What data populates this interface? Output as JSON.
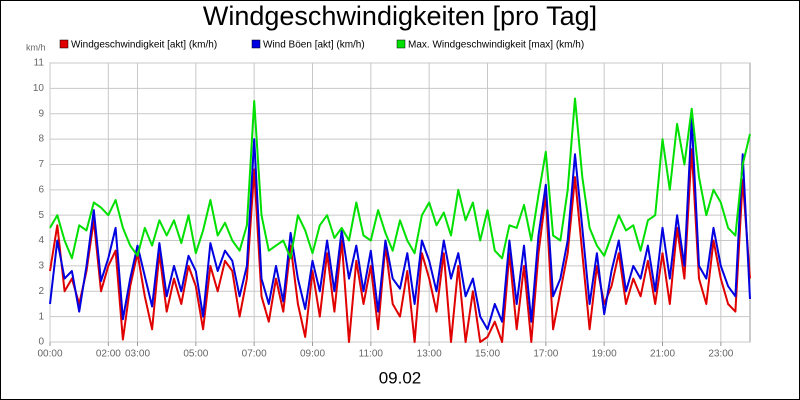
{
  "chart_data": {
    "type": "line",
    "title": "Windgeschwindigkeiten [pro Tag]",
    "y_unit": "km/h",
    "x_label": "09.02",
    "xlim": [
      0,
      24
    ],
    "xticks": [
      {
        "value": 0,
        "label": "00:00"
      },
      {
        "value": 2,
        "label": "02:00"
      },
      {
        "value": 3,
        "label": "03:00"
      },
      {
        "value": 5,
        "label": "05:00"
      },
      {
        "value": 7,
        "label": "07:00"
      },
      {
        "value": 9,
        "label": "09:00"
      },
      {
        "value": 11,
        "label": "11:00"
      },
      {
        "value": 13,
        "label": "13:00"
      },
      {
        "value": 15,
        "label": "15:00"
      },
      {
        "value": 17,
        "label": "17:00"
      },
      {
        "value": 19,
        "label": "19:00"
      },
      {
        "value": 21,
        "label": "21:00"
      },
      {
        "value": 23,
        "label": "23:00"
      }
    ],
    "ylim": [
      0,
      11
    ],
    "yticks": [
      0,
      1,
      2,
      3,
      4,
      5,
      6,
      7,
      8,
      9,
      10,
      11
    ],
    "grid": true,
    "x": [
      0,
      0.25,
      0.5,
      0.75,
      1,
      1.25,
      1.5,
      1.75,
      2,
      2.25,
      2.5,
      2.75,
      3,
      3.25,
      3.5,
      3.75,
      4,
      4.25,
      4.5,
      4.75,
      5,
      5.25,
      5.5,
      5.75,
      6,
      6.25,
      6.5,
      6.75,
      7,
      7.25,
      7.5,
      7.75,
      8,
      8.25,
      8.5,
      8.75,
      9,
      9.25,
      9.5,
      9.75,
      10,
      10.25,
      10.5,
      10.75,
      11,
      11.25,
      11.5,
      11.75,
      12,
      12.25,
      12.5,
      12.75,
      13,
      13.25,
      13.5,
      13.75,
      14,
      14.25,
      14.5,
      14.75,
      15,
      15.25,
      15.5,
      15.75,
      16,
      16.25,
      16.5,
      16.75,
      17,
      17.25,
      17.5,
      17.75,
      18,
      18.25,
      18.5,
      18.75,
      19,
      19.25,
      19.5,
      19.75,
      20,
      20.25,
      20.5,
      20.75,
      21,
      21.25,
      21.5,
      21.75,
      22,
      22.25,
      22.5,
      22.75,
      23,
      23.25,
      23.5,
      23.75,
      24
    ],
    "series": [
      {
        "name": "Windgeschwindigkeit [akt] (km/h)",
        "color": "#e00000",
        "values": [
          2.8,
          4.6,
          2.0,
          2.5,
          1.5,
          2.8,
          4.8,
          2.0,
          3.0,
          3.6,
          0.1,
          2.2,
          3.5,
          1.8,
          0.5,
          3.5,
          1.2,
          2.5,
          1.5,
          3.0,
          2.2,
          0.5,
          3.0,
          2.0,
          3.2,
          2.8,
          1.0,
          2.5,
          6.8,
          1.8,
          0.8,
          2.5,
          1.2,
          3.8,
          1.5,
          0.2,
          2.8,
          1.0,
          3.5,
          1.2,
          4.0,
          0.0,
          3.2,
          1.5,
          3.0,
          0.5,
          3.8,
          1.5,
          1.0,
          2.8,
          0.0,
          3.5,
          2.5,
          1.2,
          3.5,
          0.0,
          3.0,
          0.0,
          2.0,
          0.0,
          0.2,
          0.8,
          0.0,
          3.5,
          0.5,
          3.0,
          0.0,
          3.5,
          5.8,
          0.5,
          2.0,
          3.5,
          6.5,
          3.5,
          0.5,
          3.0,
          1.5,
          2.2,
          3.5,
          1.5,
          2.5,
          1.8,
          3.2,
          1.5,
          3.5,
          1.5,
          4.5,
          2.5,
          7.6,
          2.5,
          1.5,
          4.0,
          2.5,
          1.5,
          1.2,
          6.4,
          2.5
        ]
      },
      {
        "name": "Wind Böen [akt] (km/h)",
        "color": "#0000e0",
        "values": [
          1.5,
          4.0,
          2.5,
          2.8,
          1.2,
          3.0,
          5.2,
          2.4,
          3.3,
          4.5,
          0.9,
          2.5,
          3.8,
          2.6,
          1.4,
          3.9,
          1.8,
          3.0,
          2.0,
          3.4,
          2.8,
          1.0,
          3.9,
          2.8,
          3.6,
          3.2,
          1.8,
          3.0,
          8.0,
          2.5,
          1.5,
          3.0,
          1.6,
          4.3,
          2.5,
          1.3,
          3.2,
          2.0,
          4.0,
          2.0,
          4.4,
          2.5,
          3.8,
          2.0,
          3.6,
          1.2,
          4.0,
          2.5,
          2.1,
          3.5,
          1.5,
          4.0,
          3.2,
          2.0,
          4.0,
          2.5,
          3.5,
          1.8,
          2.5,
          1.0,
          0.5,
          1.5,
          0.8,
          4.0,
          1.5,
          3.8,
          0.8,
          4.2,
          6.2,
          1.8,
          2.5,
          4.0,
          7.4,
          4.5,
          1.5,
          3.5,
          1.1,
          2.8,
          4.0,
          2.0,
          3.0,
          2.5,
          3.8,
          2.0,
          4.5,
          2.5,
          5.0,
          3.0,
          8.8,
          3.0,
          2.5,
          4.5,
          3.0,
          2.2,
          1.8,
          7.4,
          1.7
        ]
      },
      {
        "name": "Max. Windgeschwindigkeit [max] (km/h)",
        "color": "#00e000",
        "values": [
          4.5,
          5.0,
          4.0,
          3.3,
          4.6,
          4.4,
          5.5,
          5.3,
          5.0,
          5.6,
          4.5,
          3.8,
          3.4,
          4.5,
          3.8,
          4.8,
          4.2,
          4.8,
          3.9,
          5.0,
          3.5,
          4.4,
          5.6,
          4.2,
          4.7,
          4.0,
          3.6,
          4.6,
          9.5,
          5.0,
          3.6,
          3.8,
          4.0,
          3.3,
          5.0,
          4.4,
          3.5,
          4.6,
          5.0,
          4.1,
          4.5,
          4.0,
          5.5,
          4.2,
          4.0,
          5.2,
          4.3,
          3.6,
          4.8,
          4.0,
          3.5,
          5.0,
          5.5,
          4.6,
          5.1,
          4.2,
          6.0,
          4.8,
          5.5,
          4.0,
          5.2,
          3.6,
          3.3,
          4.6,
          4.5,
          5.4,
          4.0,
          5.8,
          7.5,
          4.2,
          4.0,
          6.0,
          9.6,
          6.5,
          4.5,
          3.8,
          3.4,
          4.2,
          5.0,
          4.4,
          4.6,
          3.6,
          4.8,
          5.0,
          8.0,
          6.0,
          8.6,
          7.0,
          9.2,
          6.5,
          5.0,
          6.0,
          5.5,
          4.5,
          4.2,
          7.0,
          8.2
        ]
      }
    ]
  }
}
